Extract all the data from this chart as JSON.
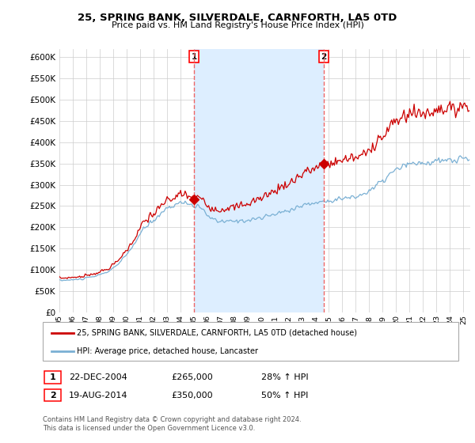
{
  "title": "25, SPRING BANK, SILVERDALE, CARNFORTH, LA5 0TD",
  "subtitle": "Price paid vs. HM Land Registry's House Price Index (HPI)",
  "ylim": [
    0,
    620000
  ],
  "yticks": [
    0,
    50000,
    100000,
    150000,
    200000,
    250000,
    300000,
    350000,
    400000,
    450000,
    500000,
    550000,
    600000
  ],
  "xmin": 1995.0,
  "xmax": 2025.5,
  "transaction1": {
    "date_num": 2005.0,
    "price": 265000,
    "label": "1",
    "date_str": "22-DEC-2004",
    "pct": "28% ↑ HPI"
  },
  "transaction2": {
    "date_num": 2014.63,
    "price": 350000,
    "label": "2",
    "date_str": "19-AUG-2014",
    "pct": "50% ↑ HPI"
  },
  "red_line_color": "#cc0000",
  "blue_line_color": "#7ab0d4",
  "shade_color": "#ddeeff",
  "vline_color": "#ee6666",
  "legend_entry1": "25, SPRING BANK, SILVERDALE, CARNFORTH, LA5 0TD (detached house)",
  "legend_entry2": "HPI: Average price, detached house, Lancaster",
  "footnote": "Contains HM Land Registry data © Crown copyright and database right 2024.\nThis data is licensed under the Open Government Licence v3.0.",
  "background_color": "#ffffff",
  "grid_color": "#cccccc"
}
